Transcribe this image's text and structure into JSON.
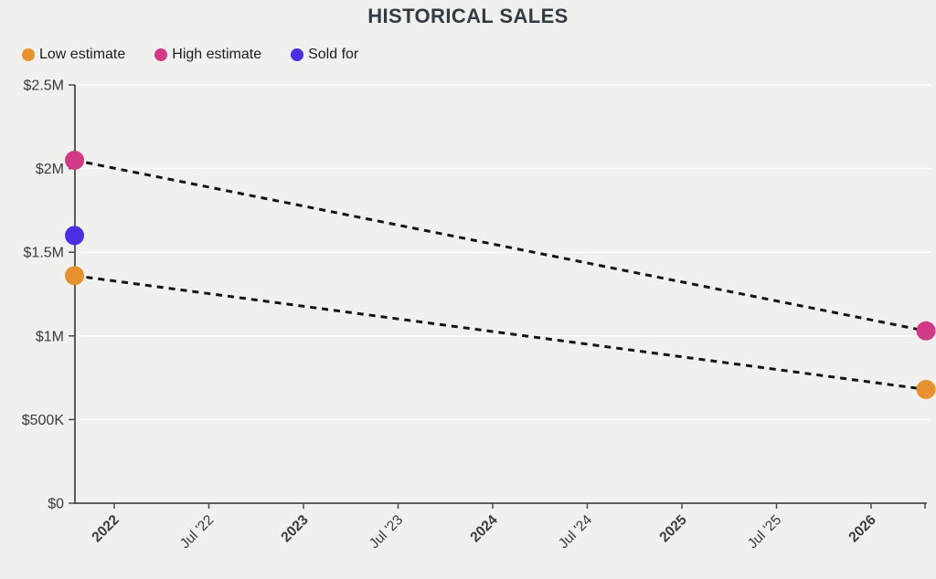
{
  "style": {
    "background": "#f0f0ee",
    "title_color": "#333b42",
    "axis_color": "#4a4a4a",
    "tick_label_color": "#3a3a3a",
    "gridline_color": "rgba(255,255,255,0.85)"
  },
  "chart_data": {
    "type": "scatter",
    "title": "HISTORICAL SALES",
    "xlabel": "",
    "ylabel": "",
    "legend_position": "top-left",
    "grid": true,
    "legend": [
      {
        "label": "Low estimate",
        "color": "#E5912F"
      },
      {
        "label": "High estimate",
        "color": "#D03A86"
      },
      {
        "label": "Sold for",
        "color": "#4C2FE3"
      }
    ],
    "x_axis": {
      "type": "time-years",
      "range": [
        2021.72,
        2026.33
      ],
      "ticks": [
        {
          "label": "2022",
          "t": 2022,
          "bold": true
        },
        {
          "label": "Jul '22",
          "t": 2022.5,
          "bold": false
        },
        {
          "label": "2023",
          "t": 2023,
          "bold": true
        },
        {
          "label": "Jul '23",
          "t": 2023.5,
          "bold": false
        },
        {
          "label": "2024",
          "t": 2024,
          "bold": true
        },
        {
          "label": "Jul '24",
          "t": 2024.5,
          "bold": false
        },
        {
          "label": "2025",
          "t": 2025,
          "bold": true
        },
        {
          "label": "Jul '25",
          "t": 2025.5,
          "bold": false
        },
        {
          "label": "2026",
          "t": 2026,
          "bold": true
        },
        {
          "label": "",
          "t": 2026.285,
          "bold": false
        }
      ]
    },
    "y_axis": {
      "range": [
        0,
        2500000
      ],
      "ticks": [
        {
          "label": "$2.5M",
          "v": 2500000
        },
        {
          "label": "$2M",
          "v": 2000000
        },
        {
          "label": "$1.5M",
          "v": 1500000
        },
        {
          "label": "$1M",
          "v": 1000000
        },
        {
          "label": "$500K",
          "v": 500000
        },
        {
          "label": "$0",
          "v": 0
        }
      ]
    },
    "series": [
      {
        "name": "High estimate",
        "color": "#D03A86",
        "connector": "dashed",
        "points": [
          {
            "x": 2021.79,
            "y": 2050000
          },
          {
            "x": 2026.29,
            "y": 1030000
          }
        ]
      },
      {
        "name": "Low estimate",
        "color": "#E5912F",
        "connector": "dashed",
        "points": [
          {
            "x": 2021.79,
            "y": 1360000
          },
          {
            "x": 2026.29,
            "y": 680000
          }
        ]
      },
      {
        "name": "Sold for",
        "color": "#4C2FE3",
        "connector": "none",
        "points": [
          {
            "x": 2021.79,
            "y": 1600000
          }
        ]
      }
    ],
    "connector_style": {
      "color": "#141414",
      "width": 3,
      "dash": [
        7,
        6
      ]
    }
  }
}
